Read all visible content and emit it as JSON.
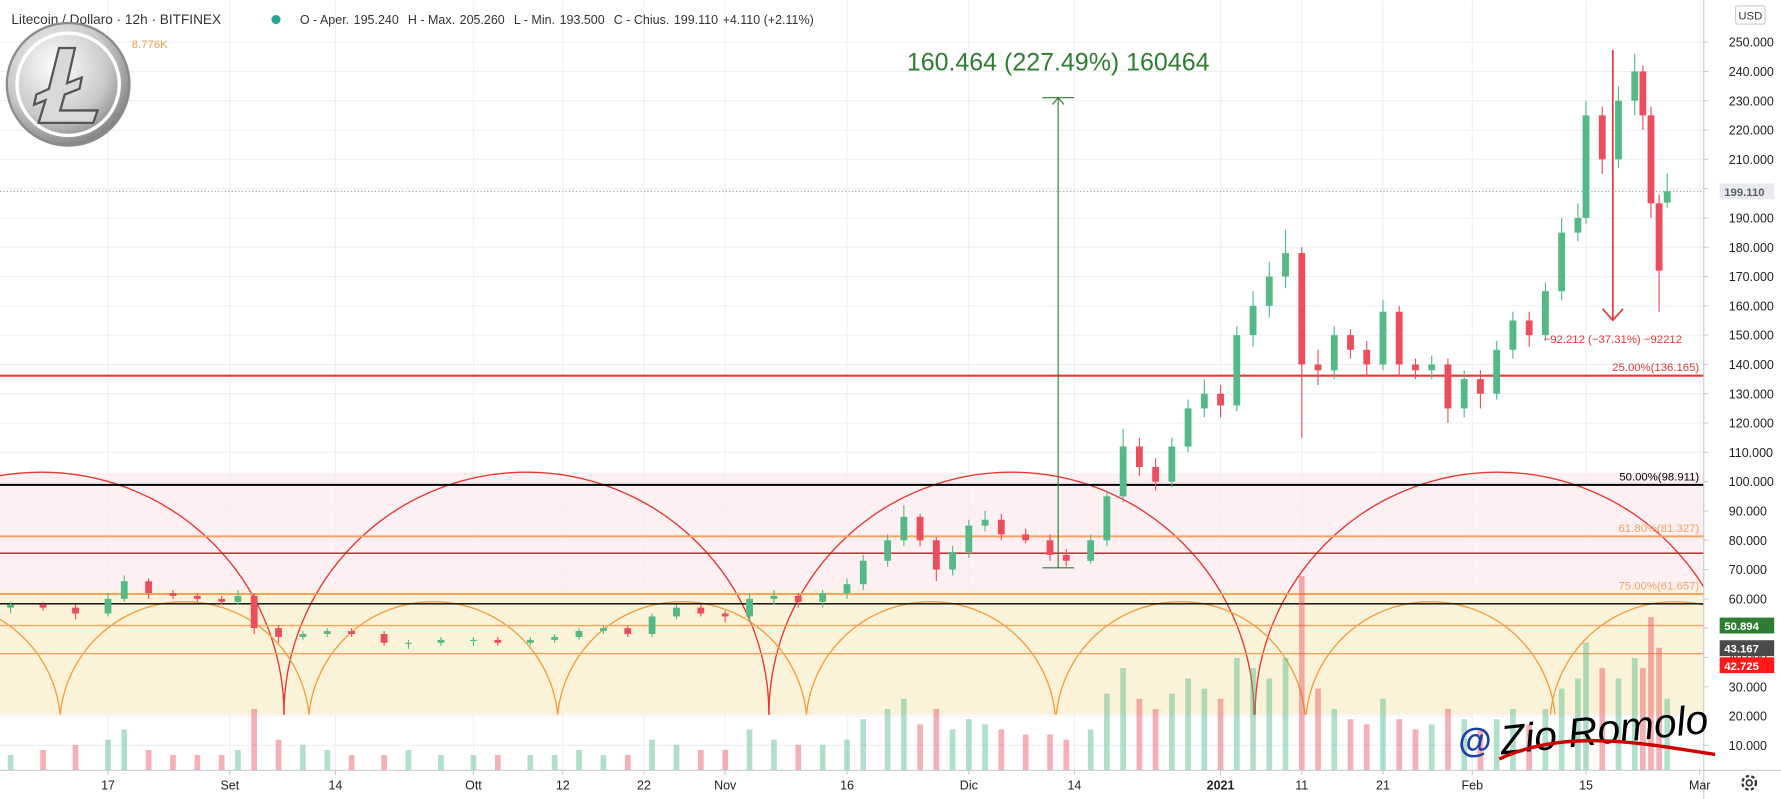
{
  "chart_data": {
    "type": "candlestick",
    "title": "Litecoin / Dollaro · 12h · BITFINEX",
    "ohlc_legend": [
      {
        "label": "O - Aper.",
        "value": "195.240"
      },
      {
        "label": "H - Max.",
        "value": "205.260"
      },
      {
        "label": "L - Min.",
        "value": "193.500"
      },
      {
        "label": "C - Chius.",
        "value": "199.110"
      }
    ],
    "change": "+4.110 (+2.11%)",
    "volume_label": "8.776K",
    "currency": "USD",
    "up_color": "#53b987",
    "down_color": "#eb4d5c",
    "x": [
      4,
      8,
      12,
      16,
      18,
      21,
      24,
      27,
      30,
      32,
      34,
      37,
      40,
      43,
      46,
      50,
      53,
      57,
      61,
      64,
      68,
      71,
      74,
      77,
      80,
      83,
      86,
      89,
      92,
      95,
      98,
      101,
      104,
      107,
      109,
      112,
      114,
      116,
      118,
      120,
      122,
      124,
      126,
      129,
      132,
      134,
      137,
      139,
      141,
      143,
      145,
      147,
      149,
      151,
      153,
      155,
      157,
      159,
      161,
      163,
      165,
      167,
      169,
      171,
      173,
      175,
      177,
      179,
      181,
      183,
      185,
      187,
      189,
      191,
      193,
      195,
      197,
      198,
      200,
      202,
      204,
      205,
      206,
      207,
      208
    ],
    "open": [
      57,
      58,
      57,
      55,
      60,
      66,
      62,
      61,
      60,
      59,
      61,
      50,
      47,
      48,
      49,
      48,
      45,
      45,
      46,
      46,
      45,
      46,
      47,
      49,
      50,
      48,
      54,
      57,
      55,
      54,
      60,
      61,
      59,
      62,
      65,
      73,
      80,
      88,
      80,
      70,
      76,
      85,
      87,
      82,
      80,
      75,
      73,
      80,
      95,
      112,
      105,
      100,
      112,
      125,
      130,
      126,
      150,
      160,
      170,
      178,
      140,
      138,
      150,
      145,
      140,
      158,
      140,
      138,
      140,
      125,
      135,
      130,
      145,
      155,
      150,
      165,
      185,
      190,
      225,
      210,
      230,
      240,
      225,
      195,
      195.24
    ],
    "high": [
      59,
      59,
      58,
      62,
      68,
      67,
      63,
      62,
      61,
      63,
      62,
      51,
      49,
      50,
      50,
      49,
      46,
      47,
      47,
      47,
      47,
      48,
      50,
      51,
      51,
      55,
      58,
      58,
      56,
      62,
      63,
      62,
      63,
      67,
      75,
      82,
      92,
      89,
      81,
      78,
      87,
      90,
      89,
      84,
      82,
      77,
      82,
      97,
      118,
      115,
      108,
      115,
      128,
      135,
      133,
      153,
      165,
      175,
      186,
      180,
      145,
      153,
      152,
      148,
      162,
      160,
      142,
      143,
      142,
      138,
      138,
      148,
      158,
      158,
      168,
      190,
      195,
      230,
      228,
      235,
      246,
      242,
      228,
      198,
      205.26
    ],
    "low": [
      55,
      56,
      53,
      54,
      59,
      60,
      60,
      59,
      58,
      58,
      48,
      45,
      46,
      47,
      47,
      44,
      43,
      44,
      44,
      44,
      44,
      45,
      46,
      48,
      47,
      47,
      53,
      54,
      52,
      52,
      58,
      57,
      57,
      60,
      63,
      71,
      78,
      78,
      66,
      68,
      74,
      83,
      80,
      79,
      73,
      71,
      72,
      78,
      93,
      102,
      97,
      98,
      110,
      122,
      122,
      124,
      146,
      156,
      166,
      115,
      133,
      135,
      142,
      136,
      138,
      136,
      135,
      135,
      120,
      122,
      125,
      128,
      142,
      146,
      148,
      162,
      182,
      188,
      205,
      207,
      225,
      220,
      190,
      158,
      193.5
    ],
    "close": [
      58,
      57,
      55,
      60,
      66,
      62,
      61,
      60,
      59,
      61,
      50,
      47,
      48,
      49,
      48,
      45,
      45,
      46,
      46,
      45,
      46,
      47,
      49,
      50,
      48,
      54,
      57,
      55,
      54,
      60,
      61,
      59,
      62,
      65,
      73,
      80,
      88,
      80,
      70,
      76,
      85,
      87,
      82,
      80,
      75,
      73,
      80,
      95,
      112,
      105,
      100,
      112,
      125,
      130,
      126,
      150,
      160,
      170,
      178,
      140,
      138,
      150,
      145,
      140,
      158,
      140,
      138,
      140,
      125,
      135,
      130,
      145,
      155,
      150,
      165,
      185,
      190,
      225,
      210,
      230,
      240,
      225,
      195,
      172,
      199.11
    ],
    "volume": [
      3,
      4,
      5,
      6,
      8,
      4,
      3,
      3,
      3,
      4,
      12,
      6,
      5,
      4,
      3,
      3,
      4,
      3,
      3,
      3,
      3,
      3,
      4,
      3,
      3,
      6,
      5,
      4,
      4,
      8,
      6,
      5,
      5,
      6,
      10,
      12,
      14,
      9,
      12,
      8,
      10,
      9,
      8,
      7,
      7,
      6,
      8,
      15,
      20,
      14,
      12,
      15,
      18,
      16,
      14,
      22,
      20,
      18,
      22,
      38,
      16,
      12,
      10,
      9,
      14,
      10,
      8,
      9,
      12,
      10,
      8,
      10,
      12,
      9,
      12,
      16,
      18,
      25,
      20,
      18,
      22,
      20,
      30,
      24,
      14
    ],
    "volume_ylim": [
      0,
      40
    ],
    "xlim": [
      2.7,
      212.5
    ],
    "xticks": [
      {
        "value": 16,
        "label": "17"
      },
      {
        "value": 31,
        "label": "Set"
      },
      {
        "value": 44,
        "label": "14"
      },
      {
        "value": 61,
        "label": "Ott"
      },
      {
        "value": 72,
        "label": "12"
      },
      {
        "value": 82,
        "label": "22"
      },
      {
        "value": 92,
        "label": "Nov"
      },
      {
        "value": 107,
        "label": "16"
      },
      {
        "value": 122,
        "label": "Dic"
      },
      {
        "value": 135,
        "label": "14"
      },
      {
        "value": 153,
        "label": "2021"
      },
      {
        "value": 163,
        "label": "11"
      },
      {
        "value": 173,
        "label": "21"
      },
      {
        "value": 184,
        "label": "Feb"
      },
      {
        "value": 198,
        "label": "15"
      },
      {
        "value": 212,
        "label": "Mar"
      }
    ],
    "ylim": [
      1.47,
      264.3
    ],
    "yticks": [
      {
        "value": 10,
        "label": "10.000"
      },
      {
        "value": 20,
        "label": "20.000"
      },
      {
        "value": 30,
        "label": "30.000"
      },
      {
        "value": 40,
        "label": "40.000"
      },
      {
        "value": 50,
        "label": "50.000"
      },
      {
        "value": 60,
        "label": "60.000"
      },
      {
        "value": 70,
        "label": "70.000"
      },
      {
        "value": 80,
        "label": "80.000"
      },
      {
        "value": 90,
        "label": "90.000"
      },
      {
        "value": 100,
        "label": "100.000"
      },
      {
        "value": 110,
        "label": "110.000"
      },
      {
        "value": 120,
        "label": "120.000"
      },
      {
        "value": 130,
        "label": "130.000"
      },
      {
        "value": 140,
        "label": "140.000"
      },
      {
        "value": 150,
        "label": "150.000"
      },
      {
        "value": 160,
        "label": "160.000"
      },
      {
        "value": 170,
        "label": "170.000"
      },
      {
        "value": 180,
        "label": "180.000"
      },
      {
        "value": 190,
        "label": "190.000"
      },
      {
        "value": 200,
        "label": "200.000"
      },
      {
        "value": 210,
        "label": "210.000"
      },
      {
        "value": 220,
        "label": "220.000"
      },
      {
        "value": 230,
        "label": "230.000"
      },
      {
        "value": 240,
        "label": "240.000"
      },
      {
        "value": 250,
        "label": "250.000"
      }
    ],
    "grid": true,
    "levels": [
      {
        "value": 136.165,
        "label": "25.00%(136.165)",
        "color": "#e53935"
      },
      {
        "value": 98.911,
        "label": "50.00%(98.911)",
        "color": "#000000"
      },
      {
        "value": 81.327,
        "label": "61.80%(81.327)",
        "color": "#f4a460"
      },
      {
        "value": 61.657,
        "label": "75.00%(61.657)",
        "color": "#f4a460"
      }
    ],
    "lines": [
      {
        "value": 75.6,
        "color": "#b71c1c"
      },
      {
        "value": 58.3,
        "color": "#000000"
      },
      {
        "value": 50.894,
        "color": "#f4a460"
      },
      {
        "value": 41.3,
        "color": "#f4a460"
      }
    ],
    "price_markers": [
      {
        "value": 199.11,
        "label": "199.110",
        "color": "#5d606b"
      },
      {
        "value": 50.894,
        "label": "50.894",
        "color": "#2e7d32"
      },
      {
        "value": 43.167,
        "label": "43.167",
        "color": "#4a4a4a"
      },
      {
        "value": 42.725,
        "label": "42.725",
        "color": "#ff1a1a"
      }
    ],
    "measure_up": {
      "text": "160.464 (227.49%) 160464",
      "x": 133,
      "from": 70.6,
      "to": 231.06,
      "color": "#2e7d32"
    },
    "measure_down": {
      "text": "−92.212 (−37.31%) −92212",
      "x": 201.3,
      "from": 247.3,
      "to": 155.1,
      "color": "#e53935"
    },
    "signature": {
      "at": "@",
      "name": "Zio Romolo"
    }
  }
}
